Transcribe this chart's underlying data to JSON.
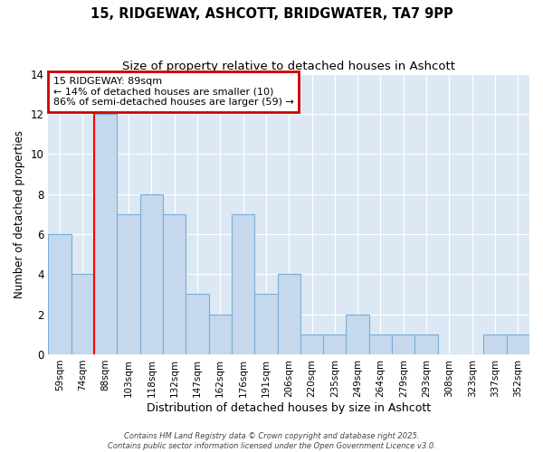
{
  "title1": "15, RIDGEWAY, ASHCOTT, BRIDGWATER, TA7 9PP",
  "title2": "Size of property relative to detached houses in Ashcott",
  "xlabel": "Distribution of detached houses by size in Ashcott",
  "ylabel": "Number of detached properties",
  "categories": [
    "59sqm",
    "74sqm",
    "88sqm",
    "103sqm",
    "118sqm",
    "132sqm",
    "147sqm",
    "162sqm",
    "176sqm",
    "191sqm",
    "206sqm",
    "220sqm",
    "235sqm",
    "249sqm",
    "264sqm",
    "279sqm",
    "293sqm",
    "308sqm",
    "323sqm",
    "337sqm",
    "352sqm"
  ],
  "values": [
    6,
    4,
    12,
    7,
    8,
    7,
    3,
    2,
    7,
    3,
    4,
    1,
    1,
    2,
    1,
    1,
    1,
    0,
    0,
    1,
    1
  ],
  "bar_color": "#c5d8ee",
  "bar_edge_color": "#7aaed4",
  "bg_color": "#ffffff",
  "plot_bg_color": "#dce9f5",
  "grid_color": "#ffffff",
  "red_line_index": 2,
  "annotation_title": "15 RIDGEWAY: 89sqm",
  "annotation_line1": "← 14% of detached houses are smaller (10)",
  "annotation_line2": "86% of semi-detached houses are larger (59) →",
  "annotation_box_color": "#ffffff",
  "annotation_box_edge": "#cc0000",
  "footer1": "Contains HM Land Registry data © Crown copyright and database right 2025.",
  "footer2": "Contains public sector information licensed under the Open Government Licence v3.0.",
  "ylim": [
    0,
    14
  ],
  "yticks": [
    0,
    2,
    4,
    6,
    8,
    10,
    12,
    14
  ]
}
